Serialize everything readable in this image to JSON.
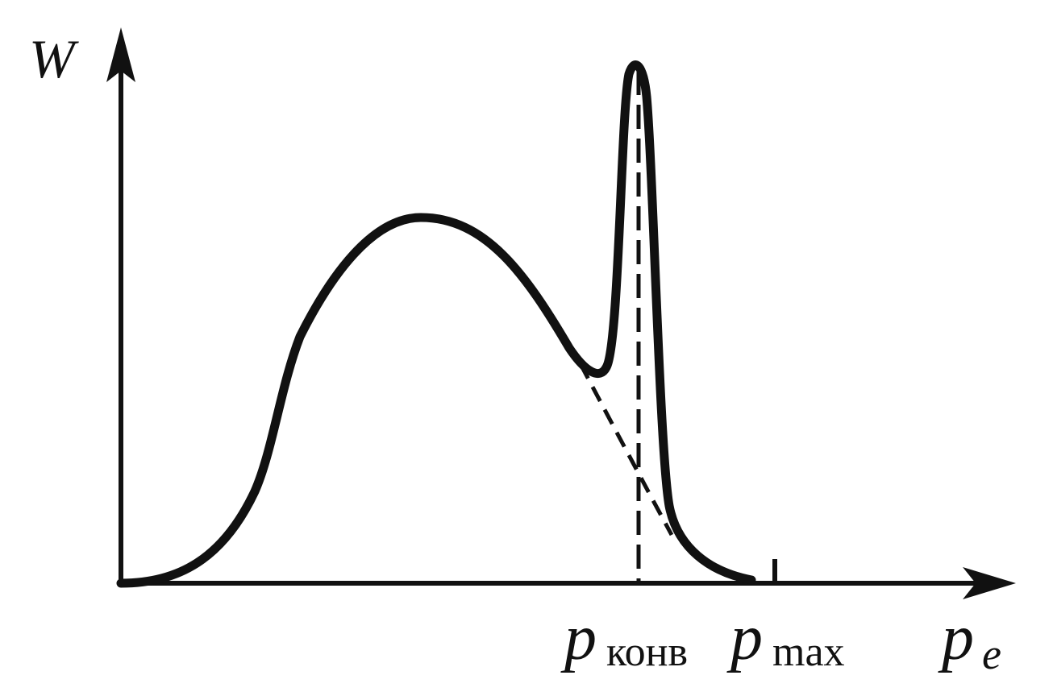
{
  "diagram": {
    "y_axis_label": "W",
    "x_axis_label": {
      "main": "p",
      "subscript": "e"
    },
    "markers": [
      {
        "main": "p",
        "subscript": "конв"
      },
      {
        "main": "p",
        "subscript": "max"
      }
    ],
    "colors": {
      "ink": "#111111",
      "background": "#ffffff"
    }
  }
}
